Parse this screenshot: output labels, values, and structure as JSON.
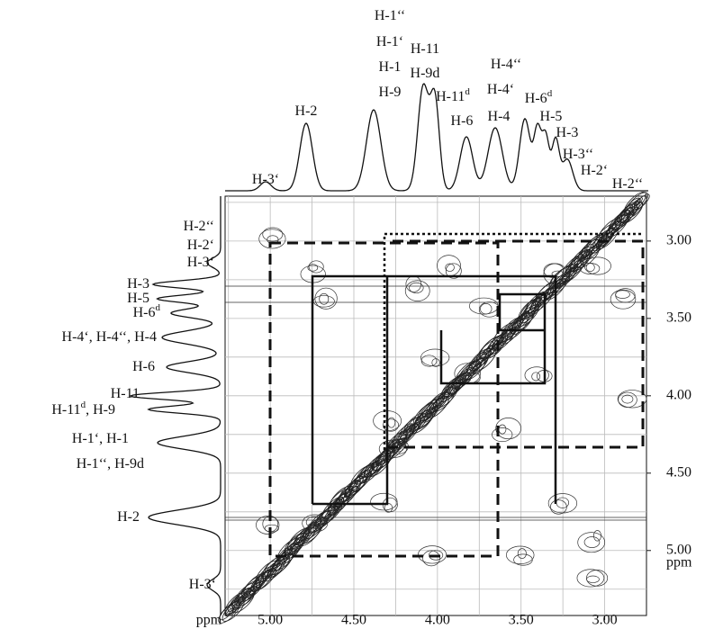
{
  "x_axis": {
    "unit": "ppm",
    "xlim": [
      5.27,
      2.75
    ],
    "ticks": [
      {
        "value": 5,
        "label": "5.00"
      },
      {
        "value": 4.5,
        "label": "4.50"
      },
      {
        "value": 4,
        "label": "4.00"
      },
      {
        "value": 3.5,
        "label": "3.50"
      },
      {
        "value": 3,
        "label": "3.00"
      }
    ]
  },
  "y_axis": {
    "unit": "ppm",
    "ylim": [
      2.71,
      5.42
    ],
    "ticks": [
      {
        "value": 3,
        "label": "3.00"
      },
      {
        "value": 3.5,
        "label": "3.50"
      },
      {
        "value": 4,
        "label": "4.00"
      },
      {
        "value": 4.5,
        "label": "4.50"
      },
      {
        "value": 5,
        "label": "5.00"
      }
    ]
  },
  "grid_values": [
    5.25,
    5,
    4.75,
    4.5,
    4.25,
    4,
    3.75,
    3.5,
    3.25,
    3,
    2.75
  ],
  "top_labels": [
    {
      "text": "H-3‘"
    },
    {
      "text": "H-2"
    },
    {
      "text": "H-1‘‘"
    },
    {
      "text": "H-1‘"
    },
    {
      "text": "H-1"
    },
    {
      "text": "H-9"
    },
    {
      "text": "H-11"
    },
    {
      "text": "H-9d"
    },
    {
      "text": "H-11",
      "sup": "d"
    },
    {
      "text": "H-6"
    },
    {
      "text": "H-4‘‘"
    },
    {
      "text": "H-4‘"
    },
    {
      "text": "H-4"
    },
    {
      "text": "H-6",
      "sup": "d"
    },
    {
      "text": "H-5"
    },
    {
      "text": "H-3"
    },
    {
      "text": "H-3‘‘"
    },
    {
      "text": "H-2‘"
    },
    {
      "text": "H-2‘‘"
    }
  ],
  "left_labels": [
    {
      "text": "H-2‘‘"
    },
    {
      "text": "H-2‘"
    },
    {
      "text": "H-3‘"
    },
    {
      "text": "H-3"
    },
    {
      "text": "H-5"
    },
    {
      "text": "H-6",
      "sup": "d"
    },
    {
      "text": "H-4‘, H-4‘‘, H-4"
    },
    {
      "text": "H-6"
    },
    {
      "text": "H-11"
    },
    {
      "text": "H-11",
      "sup": "d",
      "after": ", H-9"
    },
    {
      "text": "H-1‘, H-1"
    },
    {
      "text": "H-1‘‘, H-9d"
    },
    {
      "text": "H-2"
    },
    {
      "text": "H-3‘"
    }
  ]
}
